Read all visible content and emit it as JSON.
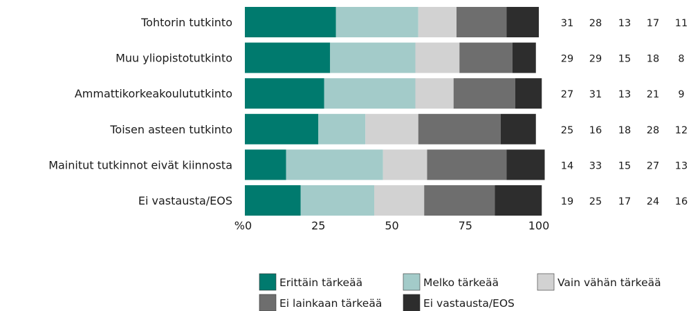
{
  "chart_data": {
    "type": "bar",
    "orientation": "horizontal",
    "stacked": true,
    "categories": [
      "Tohtorin tutkinto",
      "Muu yliopistotutkinto",
      "Ammattikorkeakoulututkinto",
      "Toisen asteen tutkinto",
      "Mainitut tutkinnot eivät kiinnosta",
      "Ei vastausta/EOS"
    ],
    "series": [
      {
        "name": "Erittäin tärkeää",
        "color": "#007a6e",
        "values": [
          31,
          29,
          27,
          25,
          14,
          19
        ]
      },
      {
        "name": "Melko tärkeää",
        "color": "#a3cbc9",
        "values": [
          28,
          29,
          31,
          16,
          33,
          25
        ]
      },
      {
        "name": "Vain vähän tärkeää",
        "color": "#d2d2d2",
        "values": [
          13,
          15,
          13,
          18,
          15,
          17
        ]
      },
      {
        "name": "Ei lainkaan tärkeää",
        "color": "#6e6e6e",
        "values": [
          17,
          18,
          21,
          28,
          27,
          24
        ]
      },
      {
        "name": "Ei vastausta/EOS",
        "color": "#2d2d2d",
        "values": [
          11,
          8,
          9,
          12,
          13,
          16
        ]
      }
    ],
    "xlim": [
      0,
      100
    ],
    "xticks": [
      0,
      25,
      50,
      75,
      100
    ],
    "xunit_label": "%",
    "legend_position": "bottom"
  }
}
